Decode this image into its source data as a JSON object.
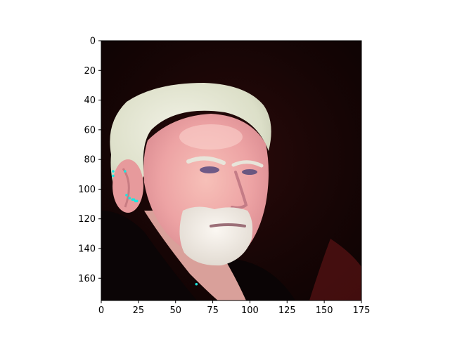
{
  "image": {
    "subject": "portrait photo of an older man with white hair and beard, dark background",
    "extent": {
      "x": [
        0,
        175
      ],
      "y": [
        0,
        175
      ]
    },
    "colors": {
      "background": "#140606",
      "hair": "#e4e6d6",
      "skin": "#f0a8a8",
      "beard": "#f2eee8",
      "clothing": "#0a0405",
      "marker": "#19e6e0"
    },
    "markers": [
      {
        "x": 8,
        "y": 88
      },
      {
        "x": 8,
        "y": 91
      },
      {
        "x": 16,
        "y": 88
      },
      {
        "x": 17,
        "y": 104
      },
      {
        "x": 19,
        "y": 106
      },
      {
        "x": 21,
        "y": 107
      },
      {
        "x": 22,
        "y": 107
      },
      {
        "x": 23,
        "y": 108
      },
      {
        "x": 24,
        "y": 108
      },
      {
        "x": 64,
        "y": 164
      }
    ]
  },
  "axes": {
    "x_ticks": [
      0,
      25,
      50,
      75,
      100,
      125,
      150,
      175
    ],
    "y_ticks": [
      0,
      20,
      40,
      60,
      80,
      100,
      120,
      140,
      160
    ],
    "x_tick_labels": [
      "0",
      "25",
      "50",
      "75",
      "100",
      "125",
      "150",
      "175"
    ],
    "y_tick_labels": [
      "0",
      "20",
      "40",
      "60",
      "80",
      "100",
      "120",
      "140",
      "160"
    ]
  }
}
